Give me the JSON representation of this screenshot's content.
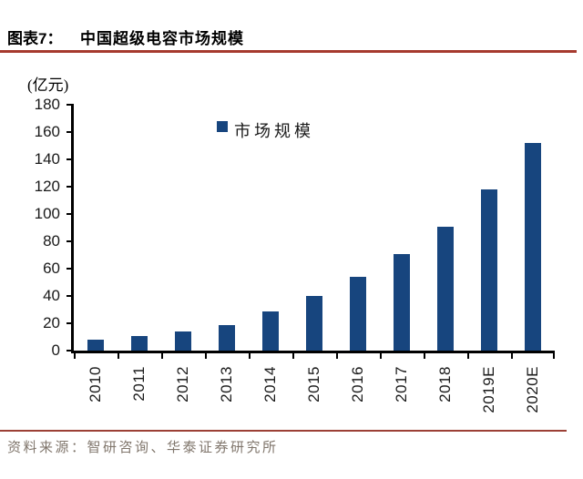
{
  "header": {
    "figure_label": "图表7：",
    "title": "中国超级电容市场规模"
  },
  "chart_data": {
    "type": "bar",
    "title": "中国超级电容市场规模",
    "unit_label": "(亿元)",
    "legend": "市场规模",
    "categories": [
      "2010",
      "2011",
      "2012",
      "2013",
      "2014",
      "2015",
      "2016",
      "2017",
      "2018",
      "2019E",
      "2020E"
    ],
    "values": [
      8,
      10.5,
      14,
      19,
      28.5,
      40,
      54,
      71,
      91,
      118,
      152
    ],
    "ylim": [
      0,
      180
    ],
    "ytick_step": 20,
    "grid": "off",
    "legend_position": "top-center",
    "bar_color": "#17457E"
  },
  "footer": {
    "source": "资料来源：智研咨询、华泰证券研究所"
  },
  "colors": {
    "accent_red": "#A63A2E",
    "footer_rule_red": "#9C4036",
    "bar_navy": "#17457E",
    "source_gray": "#80766C"
  }
}
